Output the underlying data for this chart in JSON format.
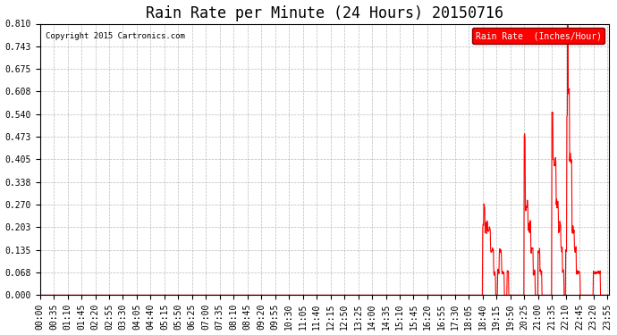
{
  "title": "Rain Rate per Minute (24 Hours) 20150716",
  "copyright": "Copyright 2015 Cartronics.com",
  "legend_label": "Rain Rate  (Inches/Hour)",
  "ylabel_ticks": [
    0.0,
    0.068,
    0.135,
    0.203,
    0.27,
    0.338,
    0.405,
    0.473,
    0.54,
    0.608,
    0.675,
    0.743,
    0.81
  ],
  "ylim": [
    0.0,
    0.81
  ],
  "line_color": "#ff0000",
  "background_color": "#ffffff",
  "grid_color": "#aaaaaa",
  "title_fontsize": 12,
  "axis_fontsize": 7,
  "total_minutes": 1440,
  "x_tick_minutes": [
    0,
    35,
    70,
    105,
    140,
    175,
    210,
    245,
    280,
    315,
    350,
    385,
    420,
    455,
    490,
    525,
    560,
    595,
    630,
    665,
    700,
    735,
    770,
    805,
    840,
    875,
    910,
    945,
    980,
    1015,
    1050,
    1085,
    1120,
    1155,
    1190,
    1225,
    1260,
    1295,
    1330,
    1365,
    1400,
    1435
  ],
  "x_tick_labels": [
    "00:00",
    "00:35",
    "01:10",
    "01:45",
    "02:20",
    "02:55",
    "03:30",
    "04:05",
    "04:40",
    "05:15",
    "05:50",
    "06:25",
    "07:00",
    "07:35",
    "08:10",
    "08:45",
    "09:20",
    "09:55",
    "10:30",
    "11:05",
    "11:40",
    "12:15",
    "12:50",
    "13:25",
    "14:00",
    "14:35",
    "15:10",
    "15:45",
    "16:20",
    "16:55",
    "17:30",
    "18:05",
    "18:40",
    "19:15",
    "19:50",
    "20:25",
    "21:00",
    "21:35",
    "22:10",
    "22:45",
    "23:20",
    "23:55"
  ]
}
